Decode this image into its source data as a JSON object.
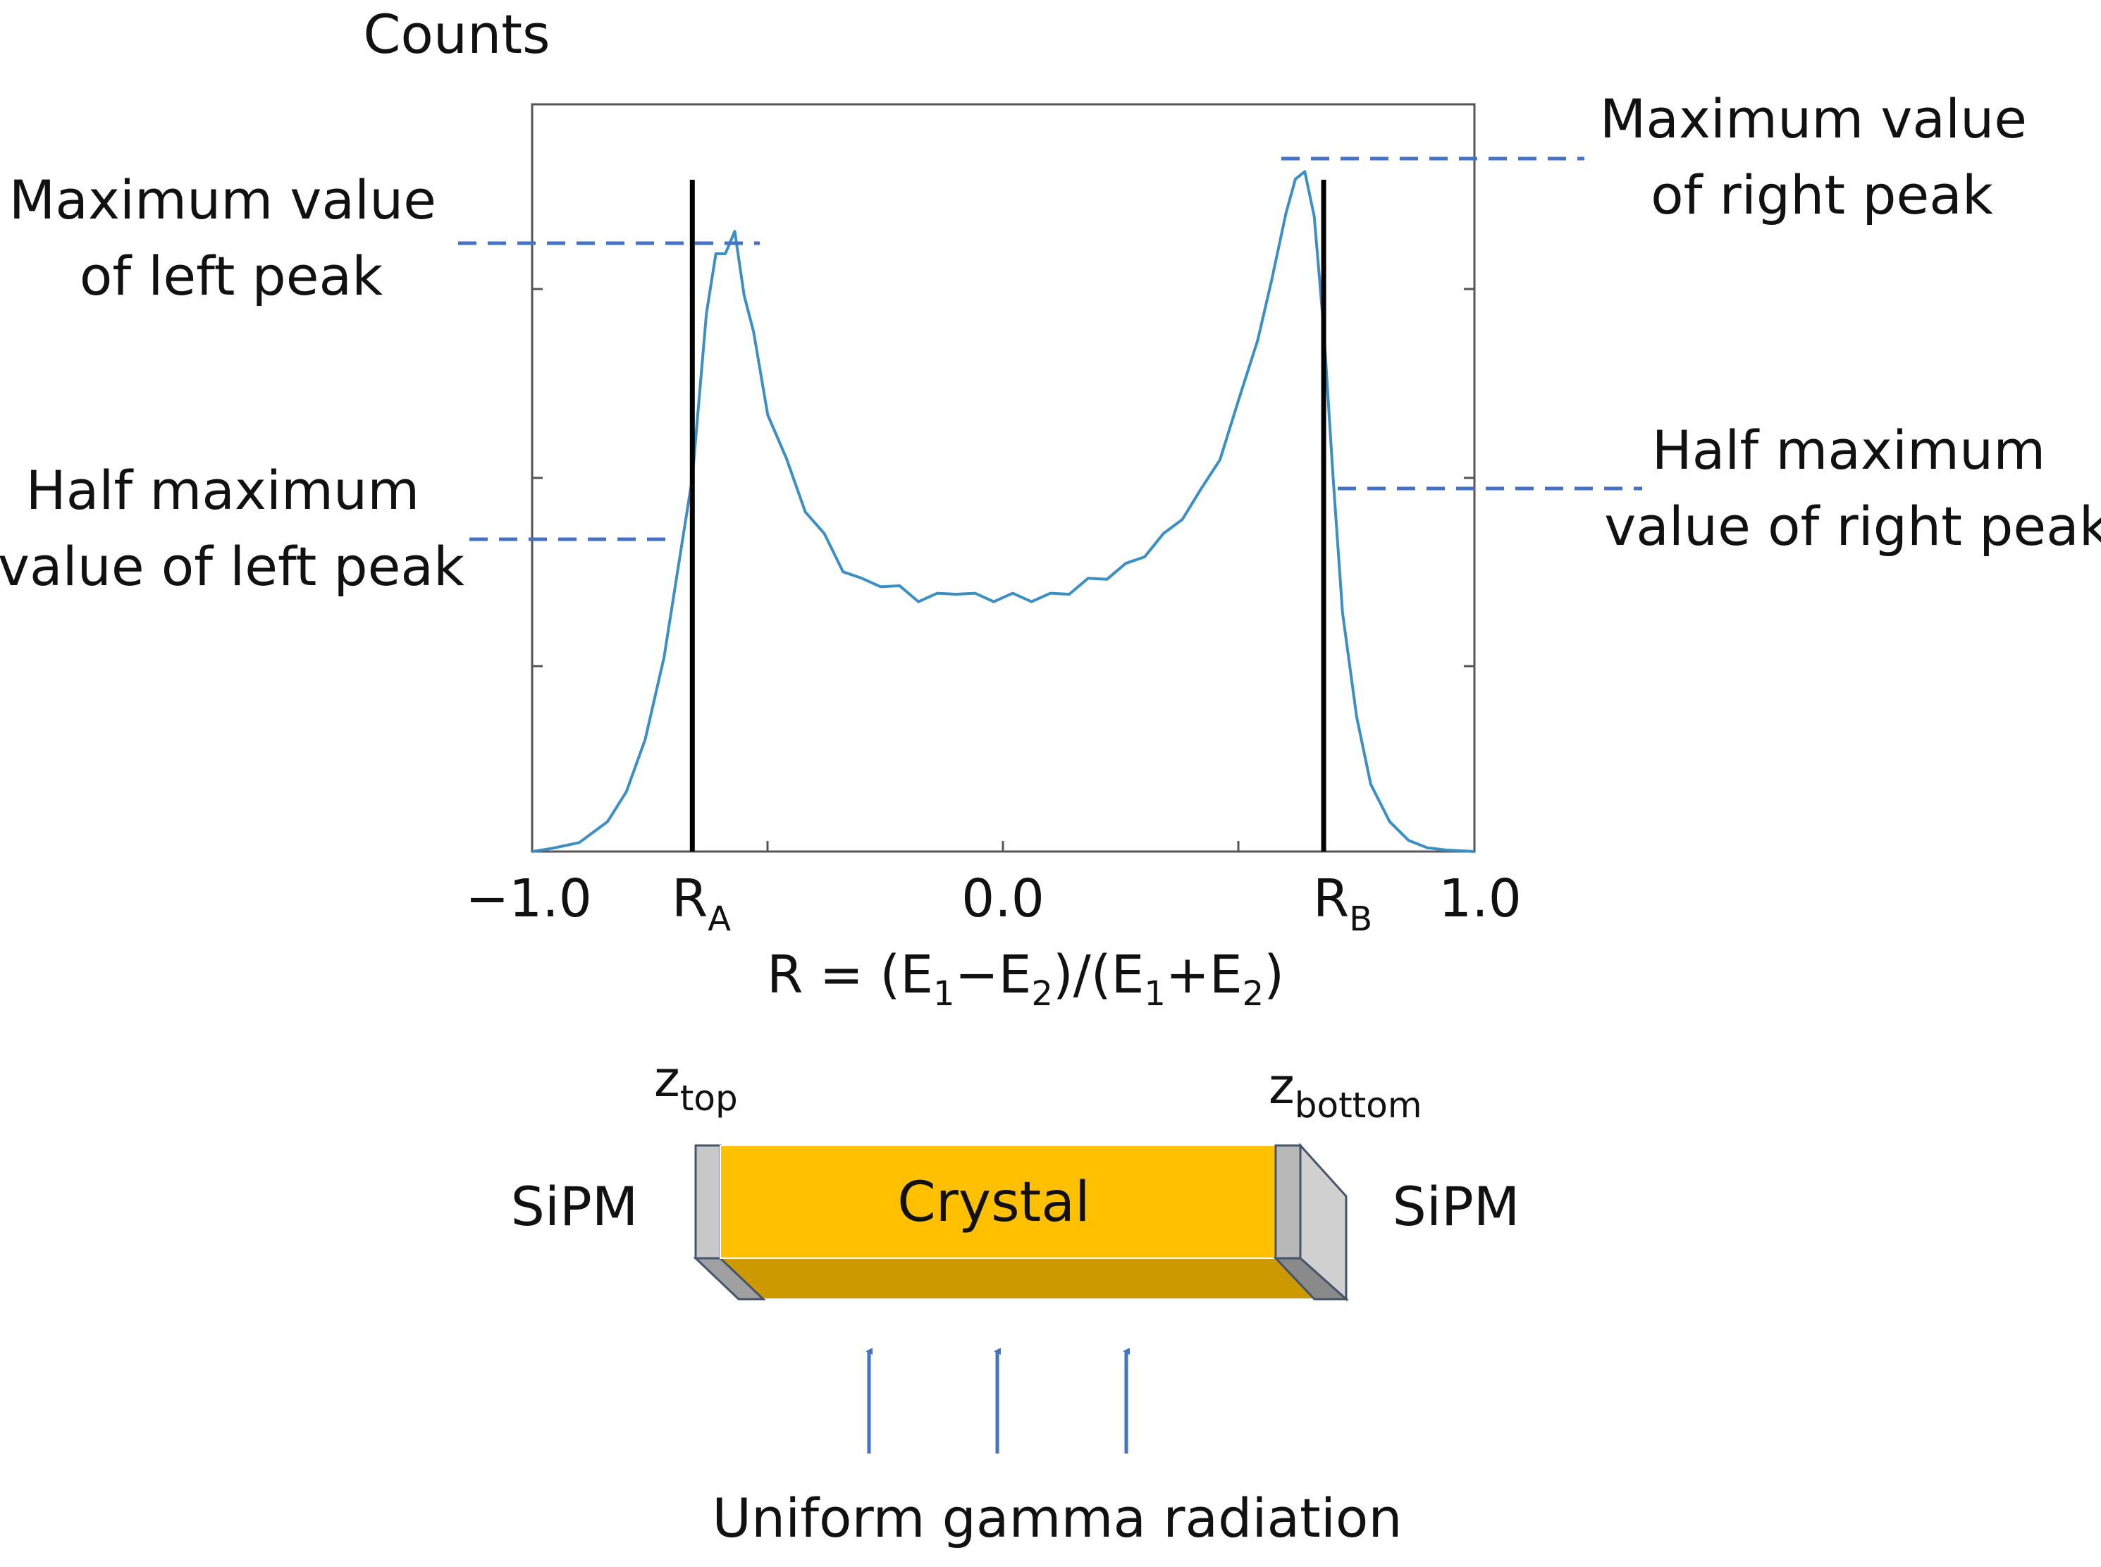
{
  "chart_data": {
    "type": "line",
    "ylabel": "Counts",
    "xlabel": {
      "main": "R = (E",
      "sub1": "1",
      "mid": "−E",
      "sub2": "2",
      "mid2": ")/(E",
      "sub3": "1",
      "mid3": "+E",
      "sub4": "2",
      "end": ")"
    },
    "xlim": [
      -1.0,
      1.0
    ],
    "ylim": [
      0,
      1.0
    ],
    "ticks": {
      "x_left": "−1.0",
      "x_center": "0.0",
      "x_right": "1.0",
      "ra": {
        "main": "R",
        "sub": "A"
      },
      "rb": {
        "main": "R",
        "sub": "B"
      }
    },
    "markers": {
      "ra_value": -0.66,
      "rb_value": 0.68
    },
    "series": [
      {
        "color": "#3b8fc4",
        "x": [
          -1.0,
          -0.96,
          -0.9,
          -0.84,
          -0.8,
          -0.76,
          -0.72,
          -0.69,
          -0.66,
          -0.63,
          -0.61,
          -0.59,
          -0.57,
          -0.55,
          -0.53,
          -0.5,
          -0.46,
          -0.42,
          -0.38,
          -0.34,
          -0.3,
          -0.26,
          -0.22,
          -0.18,
          -0.14,
          -0.1,
          -0.06,
          -0.02,
          0.02,
          0.06,
          0.1,
          0.14,
          0.18,
          0.22,
          0.26,
          0.3,
          0.34,
          0.38,
          0.42,
          0.46,
          0.5,
          0.54,
          0.57,
          0.6,
          0.62,
          0.64,
          0.66,
          0.68,
          0.7,
          0.72,
          0.75,
          0.78,
          0.82,
          0.86,
          0.9,
          0.94,
          1.0
        ],
        "y": [
          0.0,
          0.004,
          0.012,
          0.04,
          0.08,
          0.15,
          0.26,
          0.38,
          0.5,
          0.72,
          0.8,
          0.8,
          0.83,
          0.75,
          0.69,
          0.59,
          0.52,
          0.46,
          0.42,
          0.38,
          0.36,
          0.36,
          0.35,
          0.34,
          0.34,
          0.35,
          0.34,
          0.34,
          0.34,
          0.34,
          0.34,
          0.35,
          0.36,
          0.37,
          0.38,
          0.4,
          0.42,
          0.45,
          0.48,
          0.53,
          0.6,
          0.69,
          0.76,
          0.86,
          0.9,
          0.91,
          0.85,
          0.7,
          0.5,
          0.32,
          0.18,
          0.09,
          0.04,
          0.015,
          0.005,
          0.002,
          0.0
        ]
      }
    ]
  },
  "annotations": {
    "left_max": [
      "Maximum value",
      "of left peak"
    ],
    "left_half": [
      "Half maximum",
      "value of left peak"
    ],
    "right_max": [
      "Maximum value",
      "of right peak"
    ],
    "right_half": [
      "Half maximum",
      "value of right peak"
    ],
    "dash_color": "#4472c4"
  },
  "detector": {
    "crystal_label": "Crystal",
    "sipm_left": "SiPM",
    "sipm_right": "SiPM",
    "z_top": {
      "main": "z",
      "sub": "top"
    },
    "z_bottom": {
      "main": "z",
      "sub": "bottom"
    },
    "radiation_label": "Uniform gamma radiation",
    "crystal_color": "#ffc000",
    "crystal_side_color": "#cc9900",
    "sipm_color": "#c8c8c8",
    "arrow_color": "#4472c4"
  }
}
